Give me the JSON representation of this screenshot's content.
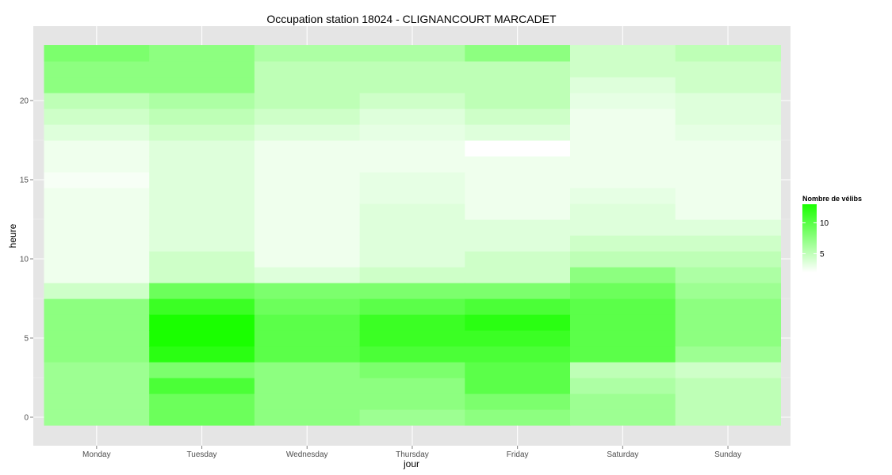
{
  "chart_data": {
    "type": "heatmap",
    "title": "Occupation station 18024 - CLIGNANCOURT MARCADET",
    "xlabel": "jour",
    "ylabel": "heure",
    "x_categories": [
      "Monday",
      "Tuesday",
      "Wednesday",
      "Thursday",
      "Friday",
      "Saturday",
      "Sunday"
    ],
    "y_hours": [
      0,
      1,
      2,
      3,
      4,
      5,
      6,
      7,
      8,
      9,
      10,
      11,
      12,
      13,
      14,
      15,
      16,
      17,
      18,
      19,
      20,
      21,
      22,
      23
    ],
    "y_ticks": [
      0,
      5,
      10,
      15,
      20
    ],
    "y_range": [
      -0.5,
      23.5
    ],
    "values": [
      [
        6,
        6,
        6,
        6,
        7,
        7,
        7,
        7,
        3,
        1,
        1,
        1,
        1,
        1,
        1,
        0.5,
        1,
        1,
        2,
        3,
        4,
        7,
        7,
        8
      ],
      [
        9,
        9,
        11,
        8,
        13,
        14,
        14,
        12,
        9,
        3,
        3,
        2,
        2,
        2,
        2,
        2,
        2,
        2,
        3,
        4,
        5,
        7,
        7,
        7
      ],
      [
        7,
        7,
        7,
        7,
        10,
        10,
        10,
        9,
        8,
        2,
        1,
        1,
        1,
        1,
        1,
        1,
        1,
        1,
        2,
        3,
        4,
        4,
        4,
        5
      ],
      [
        6,
        7,
        7,
        8,
        11,
        12,
        12,
        10,
        8,
        3,
        2,
        2,
        2,
        2,
        1.5,
        1.5,
        1,
        1,
        1.5,
        2,
        3,
        4,
        4,
        5
      ],
      [
        7,
        8,
        10,
        10,
        11,
        12,
        13,
        11,
        8,
        3,
        3,
        2,
        2,
        1,
        1,
        1,
        1,
        0,
        2,
        3,
        4,
        4,
        4,
        7
      ],
      [
        6,
        6,
        5,
        4,
        10,
        10,
        10,
        10,
        9,
        7,
        4,
        3,
        2,
        2,
        1.5,
        1,
        1,
        1,
        1,
        1,
        1.5,
        2,
        3,
        3
      ],
      [
        4,
        4,
        4,
        3,
        6,
        7,
        7,
        7,
        6,
        5,
        4,
        3,
        2,
        1,
        1,
        1,
        1,
        1,
        1.5,
        2,
        2,
        3,
        3,
        4
      ]
    ],
    "fill_scale": {
      "low": "#ffffff",
      "high": "#1aff00",
      "min": 0,
      "max": 14
    },
    "legend": {
      "title": "Nombre de vélibs",
      "ticks": [
        5,
        10
      ],
      "placement": "right"
    },
    "grid": true,
    "panel_background": "#e5e5e5"
  }
}
